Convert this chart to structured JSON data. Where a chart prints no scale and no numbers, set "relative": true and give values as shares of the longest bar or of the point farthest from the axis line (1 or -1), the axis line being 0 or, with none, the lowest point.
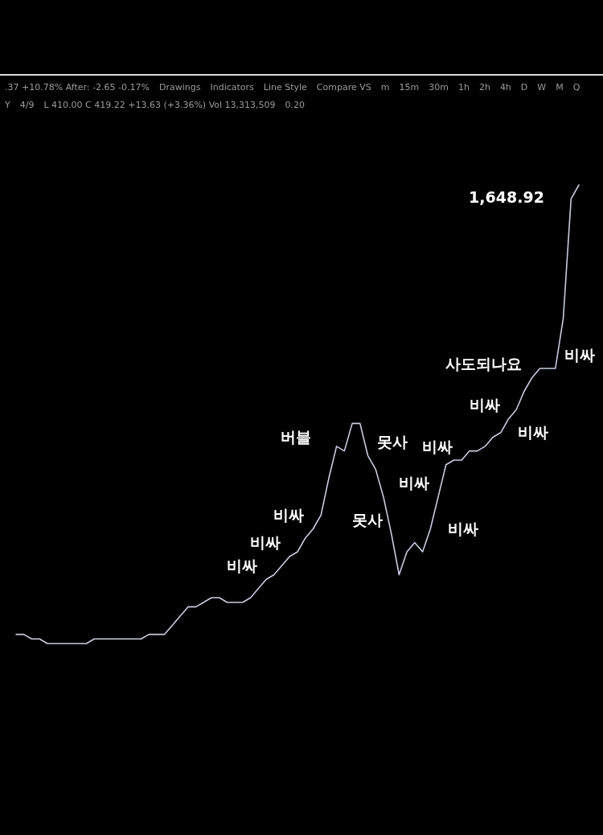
{
  "chart_data": [
    {
      "type": "other",
      "annotations": [
        ".37 +10.78% After: -2.65 -0.17%",
        "Drawings",
        "Indicators",
        "Line Style",
        "Compare VS",
        "m",
        "15m",
        "30m",
        "1h",
        "2h",
        "4h",
        "D",
        "W",
        "M",
        "Q",
        "Y",
        "4/9",
        "L 410.00  C 419.22  +13.63 (+3.36%)  Vol 13,313,509",
        "0.20"
      ]
    },
    {
      "type": "line",
      "relative": true,
      "color": "#c8cde0",
      "categories": [
        null,
        null,
        null,
        null,
        null,
        null,
        null,
        null,
        null,
        null,
        null,
        null,
        null,
        null,
        null,
        null,
        null,
        null,
        null,
        null,
        null,
        null,
        null,
        null,
        null,
        null,
        null,
        null,
        null,
        null,
        null,
        null,
        null,
        null,
        null,
        null,
        null,
        null,
        null,
        null,
        null,
        null,
        null,
        null,
        null,
        null,
        null,
        null,
        null,
        null,
        null,
        null,
        null,
        null,
        null,
        null,
        null,
        null,
        null,
        null,
        null,
        null,
        null,
        null,
        null,
        null,
        null,
        null,
        null,
        null,
        null,
        null,
        null
      ],
      "values": [
        0.02,
        0.02,
        0.01,
        0.01,
        0,
        0,
        0,
        0,
        0,
        0,
        0.01,
        0.01,
        0.01,
        0.01,
        0.01,
        0.01,
        0.01,
        0.02,
        0.02,
        0.02,
        0.04,
        0.06,
        0.08,
        0.08,
        0.09,
        0.1,
        0.1,
        0.09,
        0.09,
        0.09,
        0.1,
        0.12,
        0.14,
        0.15,
        0.17,
        0.19,
        0.2,
        0.23,
        0.25,
        0.28,
        0.36,
        0.43,
        0.42,
        0.48,
        0.48,
        0.41,
        0.38,
        0.32,
        0.24,
        0.15,
        0.2,
        0.22,
        0.2,
        0.25,
        0.32,
        0.39,
        0.4,
        0.4,
        0.42,
        0.42,
        0.43,
        0.45,
        0.46,
        0.49,
        0.51,
        0.55,
        0.58,
        0.6,
        0.6,
        0.6,
        0.71,
        0.97,
        1
      ],
      "annotations": [
        "비싸",
        "비싸",
        "비싸",
        "버블",
        "못사",
        "못사",
        "비싸",
        "비싸",
        "비싸",
        "비싸",
        "비싸",
        "사도되나요",
        "비싸",
        "1,648.92"
      ]
    }
  ]
}
